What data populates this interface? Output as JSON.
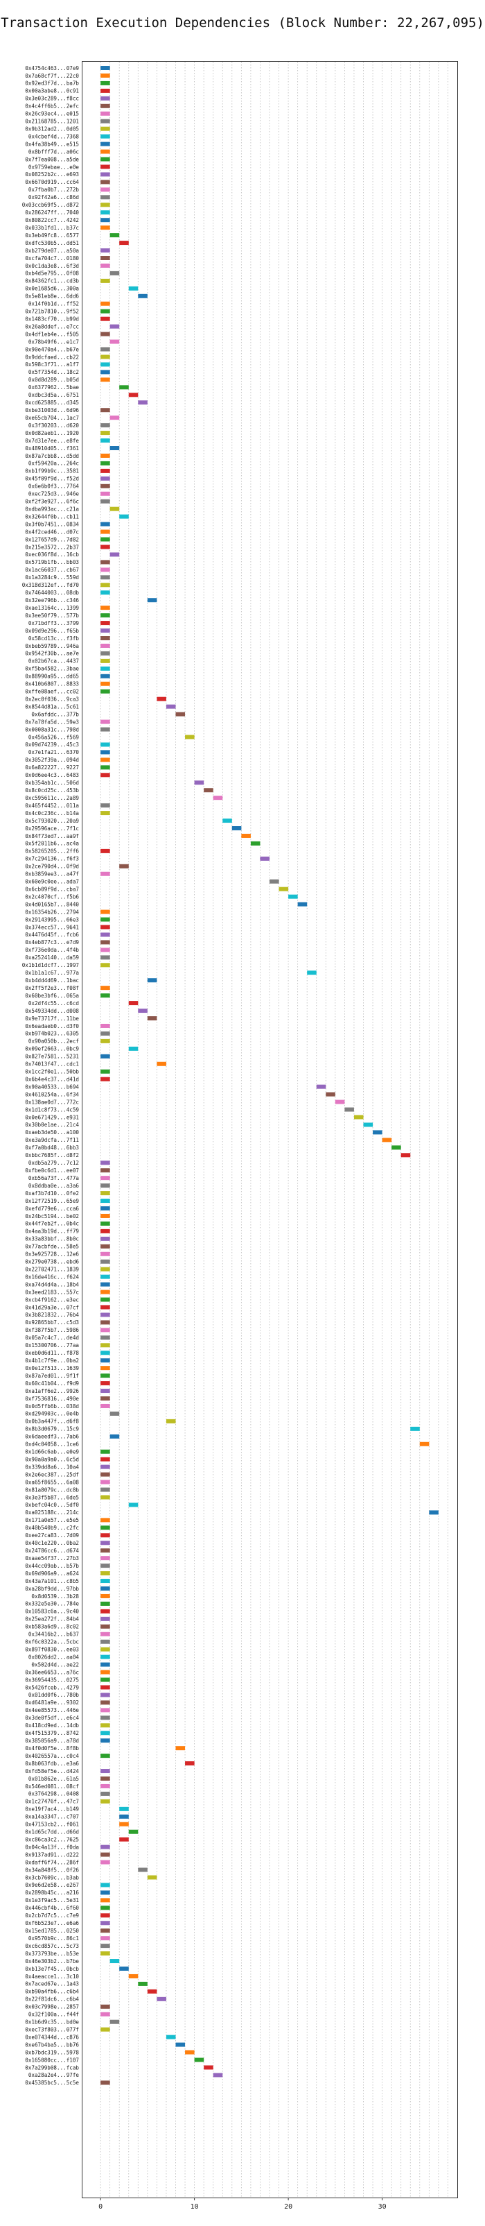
{
  "chart_data": {
    "type": "gantt",
    "title": "Transaction Execution Dependencies (Block Number: 22,267,095)",
    "xlabel": "",
    "ylabel": "",
    "xlim": [
      -2,
      38
    ],
    "x_ticks": [
      0,
      10,
      20,
      30
    ],
    "grid": "vertical dotted",
    "legend": "none",
    "bar_duration": 1,
    "palette": [
      "#1f77b4",
      "#ff7f0e",
      "#2ca02c",
      "#d62728",
      "#9467bd",
      "#8c564b",
      "#e377c2",
      "#7f7f7f",
      "#bcbd22",
      "#17becf"
    ],
    "transactions": [
      [
        "0x4754c463...07e9",
        0
      ],
      [
        "0x7a68cf7f...22c0",
        0
      ],
      [
        "0x92ed3f7d...ba7b",
        0
      ],
      [
        "0x00a3abe8...0c91",
        0
      ],
      [
        "0x3e03c289...f8cc",
        0
      ],
      [
        "0x4c4ff6b5...2efc",
        0
      ],
      [
        "0x26c93ec4...e015",
        0
      ],
      [
        "0x21168785...1201",
        0
      ],
      [
        "0x9b312ad2...0d05",
        0
      ],
      [
        "0x4cbef4d...7368",
        0
      ],
      [
        "0x4fa38b49...e515",
        0
      ],
      [
        "0x8bfff7d...a06c",
        0
      ],
      [
        "0x7f7ea008...a5de",
        0
      ],
      [
        "0x9759ebae...e0e",
        0
      ],
      [
        "0x08252b2c...e693",
        0
      ],
      [
        "0x6670d919...cc64",
        0
      ],
      [
        "0x7fba0b7...272b",
        0
      ],
      [
        "0x92f42a6...c86d",
        0
      ],
      [
        "0x03ccb69f5...d872",
        0
      ],
      [
        "0x286247ff...7040",
        0
      ],
      [
        "0x80822cc7...4242",
        0
      ],
      [
        "0x033b1fd1...b37c",
        0
      ],
      [
        "0x3eb49fc8...6577",
        1
      ],
      [
        "0xdfc530b5...dd51",
        2
      ],
      [
        "0xb279de07...a50a",
        0
      ],
      [
        "0xcfa704c7...0180",
        0
      ],
      [
        "0x0c1da3e8...6f3d",
        0
      ],
      [
        "0xb4d5e795...0f08",
        1
      ],
      [
        "0x84362fc1...cd3b",
        0
      ],
      [
        "0x0e1685d6...300a",
        3
      ],
      [
        "0x5e81eb8e...6dd6",
        4
      ],
      [
        "0x14f0b1d...ff52",
        0
      ],
      [
        "0x721b7810...9f52",
        0
      ],
      [
        "0x1483cf70...b99d",
        0
      ],
      [
        "0x26a8ddef...e7cc",
        1
      ],
      [
        "0x4df1eb4e...f505",
        0
      ],
      [
        "0x78b49f6...e1c7",
        1
      ],
      [
        "0x90e470a4...b67e",
        0
      ],
      [
        "0x9ddcfaed...cb22",
        0
      ],
      [
        "0x598c3f71...a1f7",
        0
      ],
      [
        "0x5f7354d...18c2",
        0
      ],
      [
        "0x0d8d289...b05d",
        0
      ],
      [
        "0x6377962...5bae",
        2
      ],
      [
        "0xdbc3d5a...6751",
        3
      ],
      [
        "0xcd625885...d345",
        4
      ],
      [
        "0xbe31003d...6d96",
        0
      ],
      [
        "0xe65cb704...1ac7",
        1
      ],
      [
        "0x3f30203...d620",
        0
      ],
      [
        "0x0d82aeb1...1920",
        0
      ],
      [
        "0x7d31e7ee...e8fe",
        0
      ],
      [
        "0x48910d05...f361",
        1
      ],
      [
        "0x87a7cbb8...d5dd",
        0
      ],
      [
        "0xf59420a...264c",
        0
      ],
      [
        "0xb1f99b9c...3581",
        0
      ],
      [
        "0x45f09f9d...f52d",
        0
      ],
      [
        "0x6e6b0f3...7764",
        0
      ],
      [
        "0xec725d3...946e",
        0
      ],
      [
        "0xf2f3e927...6f6c",
        0
      ],
      [
        "0xdba993ac...c21a",
        1
      ],
      [
        "0x32644f0b...cb11",
        2
      ],
      [
        "0x3f0b7451...0834",
        0
      ],
      [
        "0x4f2ced46...d07c",
        0
      ],
      [
        "0x127657d9...7d82",
        0
      ],
      [
        "0x215e3572...2b37",
        0
      ],
      [
        "0xec036f8d...16cb",
        1
      ],
      [
        "0x5719b1fb...bb03",
        0
      ],
      [
        "0x1ac66037...cb67",
        0
      ],
      [
        "0x1a3284c9...559d",
        0
      ],
      [
        "0x318d312ef...fd70",
        0
      ],
      [
        "0x74644003...08db",
        0
      ],
      [
        "0x32ee796b...c346",
        5
      ],
      [
        "0xae13164c...1399",
        0
      ],
      [
        "0x3ee50f79...577b",
        0
      ],
      [
        "0x71bdff3...3799",
        0
      ],
      [
        "0x09d9e296...f65b",
        0
      ],
      [
        "0x58cd13c...f3fb",
        0
      ],
      [
        "0xbeb59789...946a",
        0
      ],
      [
        "0x9542f30b...ae7e",
        0
      ],
      [
        "0x02b67ca...4437",
        0
      ],
      [
        "0xf5ba4582...3bae",
        0
      ],
      [
        "0x88990a95...dd65",
        0
      ],
      [
        "0x410b6807...8833",
        0
      ],
      [
        "0xffe08aef...cc02",
        0
      ],
      [
        "0x2ec0f036...9ca3",
        6
      ],
      [
        "0x8544d81a...5c61",
        7
      ],
      [
        "0x6afddc...377b",
        8
      ],
      [
        "0x7a78fa5d...59e3",
        0
      ],
      [
        "0x0008a31c...798d",
        0
      ],
      [
        "0x456a526...f569",
        9
      ],
      [
        "0x09d74239...45c3",
        0
      ],
      [
        "0x7e1fa21...6370",
        0
      ],
      [
        "0x3052f39a...094d",
        0
      ],
      [
        "0x6a822227...9227",
        0
      ],
      [
        "0x0d6ee4c3...6483",
        0
      ],
      [
        "0xb354ab1c...506d",
        10
      ],
      [
        "0x8c0cd25c...453b",
        11
      ],
      [
        "0xc595611c...2a89",
        12
      ],
      [
        "0x465f4452...011a",
        0
      ],
      [
        "0x4c0c236c...b14a",
        0
      ],
      [
        "0x5c793020...20a9",
        13
      ],
      [
        "0x29596ace...7f1c",
        14
      ],
      [
        "0x84f73ed7...aa9f",
        15
      ],
      [
        "0x5f2011b6...ac4a",
        16
      ],
      [
        "0x58265205...2ff6",
        0
      ],
      [
        "0x7c294136...f6f3",
        17
      ],
      [
        "0x2ce790d4...0f9d",
        2
      ],
      [
        "0xb3859ee3...a47f",
        0
      ],
      [
        "0x60e9c0ee...ada7",
        18
      ],
      [
        "0x6cb09f9d...cba7",
        19
      ],
      [
        "0x2c4070cf...f5b6",
        20
      ],
      [
        "0x4d0165b7...8440",
        21
      ],
      [
        "0x16354b26...2794",
        0
      ],
      [
        "0x29143995...66e3",
        0
      ],
      [
        "0x374ecc57...9641",
        0
      ],
      [
        "0x4476d45f...fcb6",
        0
      ],
      [
        "0x4eb877c3...e7d9",
        0
      ],
      [
        "0xf736e0da...4f4b",
        0
      ],
      [
        "0xa2524140...da59",
        0
      ],
      [
        "0x1b1d1dcf7...1997",
        0
      ],
      [
        "0x1b1a1c67...977a",
        22
      ],
      [
        "0xb4dd4d69...1bac",
        5
      ],
      [
        "0x2ff5f2e3...f08f",
        0
      ],
      [
        "0x60be3bf6...065a",
        0
      ],
      [
        "0x2df4c55...c6cd",
        3
      ],
      [
        "0x549334dd...d008",
        4
      ],
      [
        "0x9e73717f...11be",
        5
      ],
      [
        "0x6eadaeb0...d3f0",
        0
      ],
      [
        "0xb974b023...6305",
        0
      ],
      [
        "0x90a050b...2ecf",
        0
      ],
      [
        "0x09ef2663...0bc9",
        3
      ],
      [
        "0x827e7581...5231",
        0
      ],
      [
        "0x74013f47...cdc1",
        6
      ],
      [
        "0x1cc2f0e1...50bb",
        0
      ],
      [
        "0x6b4e4c37...d41d",
        0
      ],
      [
        "0x90a40533...b694",
        23
      ],
      [
        "0x4610254a...6f34",
        24
      ],
      [
        "0x138ae0d7...772c",
        25
      ],
      [
        "0x1d1c8f73...4c59",
        26
      ],
      [
        "0x0e671429...e931",
        27
      ],
      [
        "0x30b0e1ae...21c4",
        28
      ],
      [
        "0xaeb3de50...a100",
        29
      ],
      [
        "0xe3a9dcfa...7f11",
        30
      ],
      [
        "0xf7a0bd48...6bb3",
        31
      ],
      [
        "0xbbc7685f...d8f2",
        32
      ],
      [
        "0xdb5a279...7c12",
        0
      ],
      [
        "0xfbe0c6d1...ee07",
        0
      ],
      [
        "0xb56a73f...477a",
        0
      ],
      [
        "0x8ddba0e...a3a6",
        0
      ],
      [
        "0xaf3b7d10...0fe2",
        0
      ],
      [
        "0x12f72519...65e9",
        0
      ],
      [
        "0xefd779e6...cca6",
        0
      ],
      [
        "0x24bc5194...be02",
        0
      ],
      [
        "0x44f7eb2f...0b4c",
        0
      ],
      [
        "0x4aa3b19d...ff79",
        0
      ],
      [
        "0x33a83bbf...8b0c",
        0
      ],
      [
        "0x77acbfde...58e5",
        0
      ],
      [
        "0x3e925728...12e6",
        0
      ],
      [
        "0x279e0738...ebd6",
        0
      ],
      [
        "0x22702471...1839",
        0
      ],
      [
        "0x16de416c...f624",
        0
      ],
      [
        "0xa74d4d4a...18b4",
        0
      ],
      [
        "0x3eed2183...557c",
        0
      ],
      [
        "0xcb4f9162...e3ec",
        0
      ],
      [
        "0x41d29a3e...07cf",
        0
      ],
      [
        "0x3b821832...76b4",
        0
      ],
      [
        "0x92865bb7...c5d3",
        0
      ],
      [
        "0xf387f5b7...5986",
        0
      ],
      [
        "0x05a7c4c7...de4d",
        0
      ],
      [
        "0x15300706...77aa",
        0
      ],
      [
        "0xeb0d6d11...f878",
        0
      ],
      [
        "0x4b1c7f9e...0ba2",
        0
      ],
      [
        "0x0e12f513...1639",
        0
      ],
      [
        "0x87a7ed01...9f1f",
        0
      ],
      [
        "0x60c41b04...f9d9",
        0
      ],
      [
        "0xa1aff6e2...9926",
        0
      ],
      [
        "0xf7536816...490e",
        0
      ],
      [
        "0x0d5ffb6b...038d",
        0
      ],
      [
        "0xd294903c...0e4b",
        1
      ],
      [
        "0x0b3a447f...d6f8",
        7
      ],
      [
        "0x8b3d0679...15c9",
        33
      ],
      [
        "0x6daeedf3...7ab6",
        1
      ],
      [
        "0xd4c04058...1ce6",
        34
      ],
      [
        "0x1d66c6ab...e0e9",
        0
      ],
      [
        "0x90a0a9a0...6c5d",
        0
      ],
      [
        "0x339dd8a6...10a4",
        0
      ],
      [
        "0x2e6ec387...25df",
        0
      ],
      [
        "0xa65f8655...6a08",
        0
      ],
      [
        "0x81a8079c...dc8b",
        0
      ],
      [
        "0x3e3f5b87...6de5",
        0
      ],
      [
        "0xbefc04c0...5df0",
        3
      ],
      [
        "0xa025188c...214c",
        35
      ],
      [
        "0x171a0e57...e5e5",
        0
      ],
      [
        "0x40b540b9...c2fc",
        0
      ],
      [
        "0xee27ca83...7d09",
        0
      ],
      [
        "0x40c1e220...0ba2",
        0
      ],
      [
        "0x24786cc6...d674",
        0
      ],
      [
        "0xaae54f37...27b3",
        0
      ],
      [
        "0x44cc09ab...b57b",
        0
      ],
      [
        "0x69d906a9...a624",
        0
      ],
      [
        "0x43a7a101...c8b5",
        0
      ],
      [
        "0xa28bf9dd...97bb",
        0
      ],
      [
        "0x8d0539...3b28",
        0
      ],
      [
        "0x332e5e30...784e",
        0
      ],
      [
        "0x10583c6a...9c40",
        0
      ],
      [
        "0x25ea272f...84b4",
        0
      ],
      [
        "0xb583a6d9...8c02",
        0
      ],
      [
        "0x34416b2...b637",
        0
      ],
      [
        "0xf6c0322a...5cbc",
        0
      ],
      [
        "0x897f0830...ee03",
        0
      ],
      [
        "0x0026dd2...aa04",
        0
      ],
      [
        "0x502d4d...ae22",
        0
      ],
      [
        "0x36ee6653...a76c",
        0
      ],
      [
        "0x36954435...0275",
        0
      ],
      [
        "0x5426fceb...4279",
        0
      ],
      [
        "0x01dd0f6...780b",
        0
      ],
      [
        "0xd6481a9e...9302",
        0
      ],
      [
        "0x4ee85573...446e",
        0
      ],
      [
        "0x3de0f5df...e6c4",
        0
      ],
      [
        "0x418cd9ed...14db",
        0
      ],
      [
        "0x4f515379...8742",
        0
      ],
      [
        "0x385056a9...a78d",
        0
      ],
      [
        "0x4f0d0f5e...8f8b",
        8
      ],
      [
        "0x4026557a...c0c4",
        0
      ],
      [
        "0x8b063fdb...e3a6",
        9
      ],
      [
        "0xfd58ef5e...d424",
        0
      ],
      [
        "0x01b862e...61a5",
        0
      ],
      [
        "0x546ed081...08cf",
        0
      ],
      [
        "0x3764298...0408",
        0
      ],
      [
        "0x1c27476f...47c7",
        0
      ],
      [
        "0xe19f7ac4...b149",
        2
      ],
      [
        "0xa14a3347...c707",
        2
      ],
      [
        "0x47153cb2...f061",
        2
      ],
      [
        "0x1d65c7dd...d66d",
        3
      ],
      [
        "0xc86ca3c2...7625",
        2
      ],
      [
        "0x04c4a13f...f0da",
        0
      ],
      [
        "0x9137ad91...d222",
        0
      ],
      [
        "0xdaff6f74...286f",
        0
      ],
      [
        "0x34a848f5...0f26",
        4
      ],
      [
        "0x3cb7609c...b3ab",
        5
      ],
      [
        "0x9e6d2e58...e267",
        0
      ],
      [
        "0x2898b45c...a216",
        0
      ],
      [
        "0x1e3f9ac5...5e31",
        0
      ],
      [
        "0x446cbf4b...6f60",
        0
      ],
      [
        "0x2cb7d7c5...c7e9",
        0
      ],
      [
        "0xf6b523e7...e6a6",
        0
      ],
      [
        "0x15ed1785...0250",
        0
      ],
      [
        "0x9570b9c...86c1",
        0
      ],
      [
        "0xc6cd857c...5c73",
        0
      ],
      [
        "0x373793be...b53e",
        0
      ],
      [
        "0x46e303b2...b7be",
        1
      ],
      [
        "0xb13e7f45...0bcb",
        2
      ],
      [
        "0x4aeacce1...3c10",
        3
      ],
      [
        "0x7aced67e...1a43",
        4
      ],
      [
        "0xb90a4fb6...c6b4",
        5
      ],
      [
        "0x22f81dc6...c6b4",
        6
      ],
      [
        "0x03c7998e...2857",
        0
      ],
      [
        "0x32f100a...f44f",
        0
      ],
      [
        "0x1b6d9c35...bd0e",
        1
      ],
      [
        "0xec73f803...077f",
        0
      ],
      [
        "0xe074344d...c876",
        7
      ],
      [
        "0xe67b4ba5...bb76",
        8
      ],
      [
        "0xb7bdc319...5978",
        9
      ],
      [
        "0x165080cc...f107",
        10
      ],
      [
        "0x7a299b08...fcab",
        11
      ],
      [
        "0xa28a2e4...97fe",
        12
      ],
      [
        "0x45385bc5...5c5e",
        0
      ]
    ]
  }
}
